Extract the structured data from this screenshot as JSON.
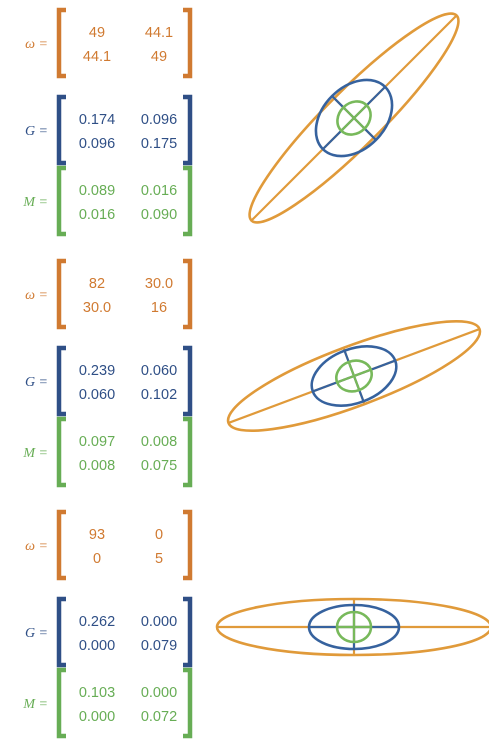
{
  "colors": {
    "omega": "#d07a31",
    "G": "#2f4f86",
    "M": "#67ad55",
    "ellipse_omega": "#e09a3a",
    "ellipse_G": "#36629e",
    "ellipse_M": "#78b95b"
  },
  "labels": {
    "omega": "ω =",
    "G": "G =",
    "M": "M ="
  },
  "groups": [
    {
      "omega": [
        [
          "49",
          "44.1"
        ],
        [
          "44.1",
          "49"
        ]
      ],
      "G": [
        [
          "0.174",
          "0.096"
        ],
        [
          "0.096",
          "0.175"
        ]
      ],
      "M": [
        [
          "0.089",
          "0.016"
        ],
        [
          "0.016",
          "0.090"
        ]
      ]
    },
    {
      "omega": [
        [
          "82",
          "30.0"
        ],
        [
          "30.0",
          "16"
        ]
      ],
      "G": [
        [
          "0.239",
          "0.060"
        ],
        [
          "0.060",
          "0.102"
        ]
      ],
      "M": [
        [
          "0.097",
          "0.008"
        ],
        [
          "0.008",
          "0.075"
        ]
      ]
    },
    {
      "omega": [
        [
          "93",
          "0"
        ],
        [
          "0",
          "5"
        ]
      ],
      "G": [
        [
          "0.262",
          "0.000"
        ],
        [
          "0.000",
          "0.079"
        ]
      ],
      "M": [
        [
          "0.103",
          "0.000"
        ],
        [
          "0.000",
          "0.072"
        ]
      ]
    }
  ]
}
